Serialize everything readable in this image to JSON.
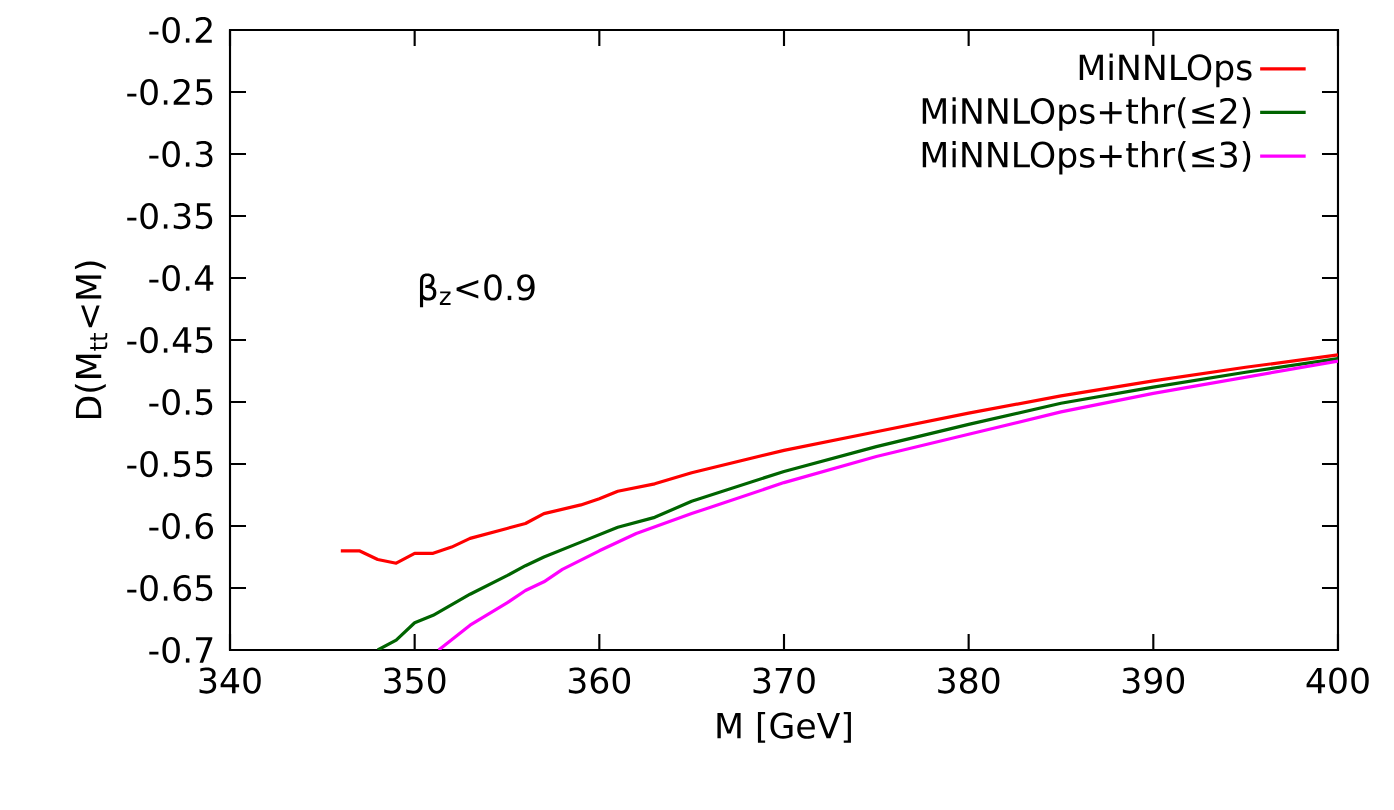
{
  "chart_data": {
    "type": "line",
    "xlabel": "M [GeV]",
    "ylabel": "D(M$_{tt}$<M)",
    "annotations": [
      "β$_{z}$<0.9"
    ],
    "xlim": [
      340,
      400
    ],
    "xticks": [
      340,
      350,
      360,
      370,
      380,
      390,
      400
    ],
    "ylim": [
      -0.7,
      -0.2
    ],
    "yticks": [
      -0.7,
      -0.65,
      -0.6,
      -0.55,
      -0.5,
      -0.45,
      -0.4,
      -0.35,
      -0.3,
      -0.25,
      -0.2
    ],
    "legend": "top right",
    "series": [
      {
        "name": "MiNNLOps",
        "color": "#ff0000",
        "x": [
          346,
          347,
          348,
          349,
          350,
          351,
          352,
          353,
          355,
          356,
          357,
          359,
          360,
          361,
          363,
          365,
          370,
          375,
          380,
          385,
          390,
          395,
          400
        ],
        "values": [
          -0.62,
          -0.62,
          -0.627,
          -0.63,
          -0.622,
          -0.622,
          -0.617,
          -0.61,
          -0.602,
          -0.598,
          -0.59,
          -0.583,
          -0.578,
          -0.572,
          -0.566,
          -0.557,
          -0.539,
          -0.524,
          -0.509,
          -0.495,
          -0.483,
          -0.472,
          -0.462
        ]
      },
      {
        "name": "MiNNLOps+thr(≤2)",
        "color": "#006400",
        "x": [
          348,
          349,
          350,
          351,
          353,
          355,
          356,
          357,
          359,
          361,
          363,
          365,
          370,
          375,
          380,
          385,
          390,
          395,
          400
        ],
        "values": [
          -0.7,
          -0.692,
          -0.678,
          -0.672,
          -0.655,
          -0.64,
          -0.632,
          -0.625,
          -0.613,
          -0.601,
          -0.593,
          -0.58,
          -0.556,
          -0.536,
          -0.518,
          -0.501,
          -0.488,
          -0.476,
          -0.465
        ]
      },
      {
        "name": "MiNNLOps+thr(≤3)",
        "color": "#ff00ff",
        "x": [
          351.3,
          353,
          355,
          356,
          357,
          358,
          360,
          362,
          365,
          370,
          375,
          380,
          385,
          390,
          395,
          400
        ],
        "values": [
          -0.7,
          -0.68,
          -0.662,
          -0.652,
          -0.645,
          -0.635,
          -0.62,
          -0.606,
          -0.59,
          -0.565,
          -0.544,
          -0.526,
          -0.508,
          -0.493,
          -0.48,
          -0.467
        ]
      }
    ]
  }
}
